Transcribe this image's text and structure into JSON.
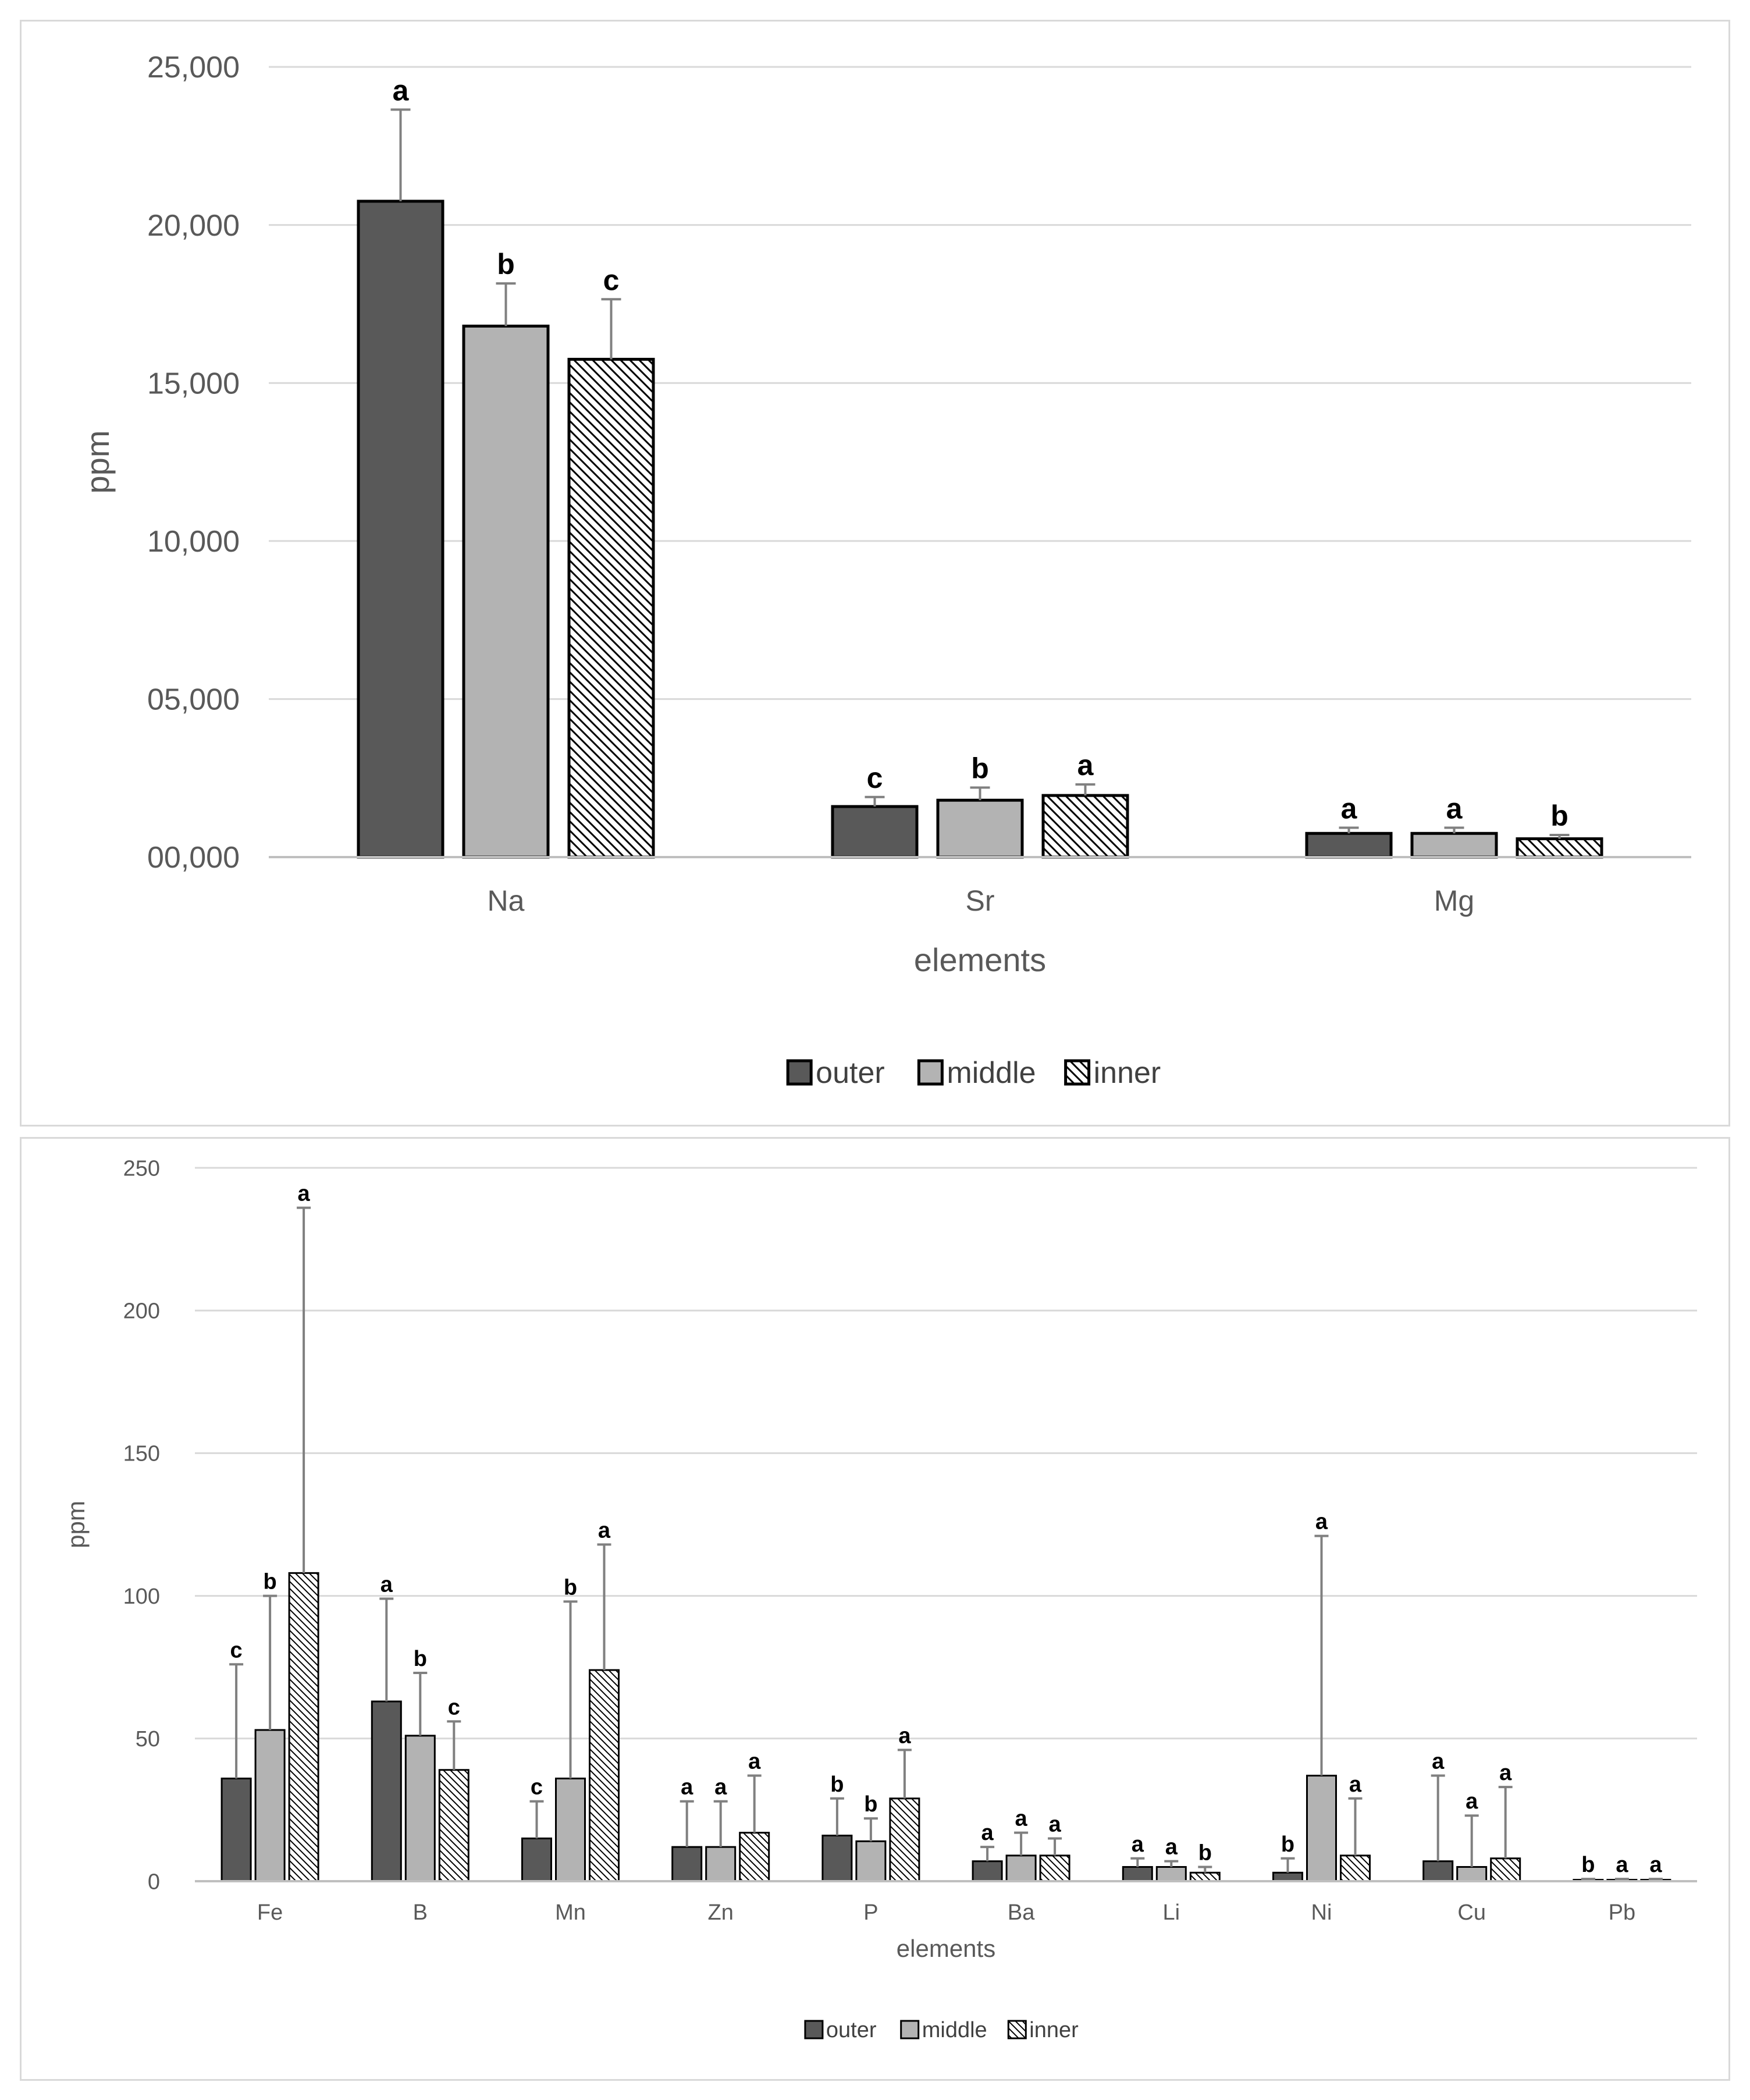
{
  "colors": {
    "outer": "#595959",
    "middle": "#b3b3b3",
    "inner_bg": "#ffffff",
    "grid": "#d9d9d9",
    "errorbar": "#808080"
  },
  "chart_data": [
    {
      "type": "bar",
      "xlabel": "elements",
      "ylabel": "ppm",
      "ylim": [
        0,
        25000
      ],
      "yticks": [
        0,
        5000,
        10000,
        15000,
        20000,
        25000
      ],
      "ytick_labels": [
        "00,000",
        "05,000",
        "10,000",
        "15,000",
        "20,000",
        "25,000"
      ],
      "grid": true,
      "legend_position": "bottom",
      "categories": [
        "Na",
        "Sr",
        "Mg"
      ],
      "series": [
        {
          "name": "outer",
          "values": [
            20750,
            1600,
            750
          ],
          "errors": [
            2900,
            300,
            180
          ],
          "labels": [
            "a",
            "c",
            "a"
          ]
        },
        {
          "name": "middle",
          "values": [
            16800,
            1800,
            750
          ],
          "errors": [
            1350,
            400,
            180
          ],
          "labels": [
            "b",
            "b",
            "a"
          ]
        },
        {
          "name": "inner",
          "values": [
            15750,
            1950,
            580
          ],
          "errors": [
            1900,
            350,
            120
          ],
          "labels": [
            "c",
            "a",
            "b"
          ]
        }
      ]
    },
    {
      "type": "bar",
      "xlabel": "elements",
      "ylabel": "ppm",
      "ylim": [
        0,
        250
      ],
      "yticks": [
        0,
        50,
        100,
        150,
        200,
        250
      ],
      "ytick_labels": [
        "0",
        "50",
        "100",
        "150",
        "200",
        "250"
      ],
      "grid": true,
      "legend_position": "bottom",
      "categories": [
        "Fe",
        "B",
        "Mn",
        "Zn",
        "P",
        "Ba",
        "Li",
        "Ni",
        "Cu",
        "Pb"
      ],
      "series": [
        {
          "name": "outer",
          "values": [
            36,
            63,
            15,
            12,
            16,
            7,
            5,
            3,
            7,
            0.5
          ],
          "errors": [
            40,
            36,
            13,
            16,
            13,
            5,
            3,
            5,
            30,
            0.3
          ],
          "labels": [
            "c",
            "a",
            "c",
            "a",
            "b",
            "a",
            "a",
            "b",
            "a",
            "b"
          ]
        },
        {
          "name": "middle",
          "values": [
            53,
            51,
            36,
            12,
            14,
            9,
            5,
            37,
            5,
            0.5
          ],
          "errors": [
            47,
            22,
            62,
            16,
            8,
            8,
            2,
            84,
            18,
            0.3
          ],
          "labels": [
            "b",
            "b",
            "b",
            "a",
            "b",
            "a",
            "a",
            "a",
            "a",
            "a"
          ]
        },
        {
          "name": "inner",
          "values": [
            108,
            39,
            74,
            17,
            29,
            9,
            3,
            9,
            8,
            0.5
          ],
          "errors": [
            128,
            17,
            44,
            20,
            17,
            6,
            2,
            20,
            25,
            0.3
          ],
          "labels": [
            "a",
            "c",
            "a",
            "a",
            "a",
            "a",
            "b",
            "a",
            "a",
            "a"
          ]
        }
      ]
    }
  ]
}
